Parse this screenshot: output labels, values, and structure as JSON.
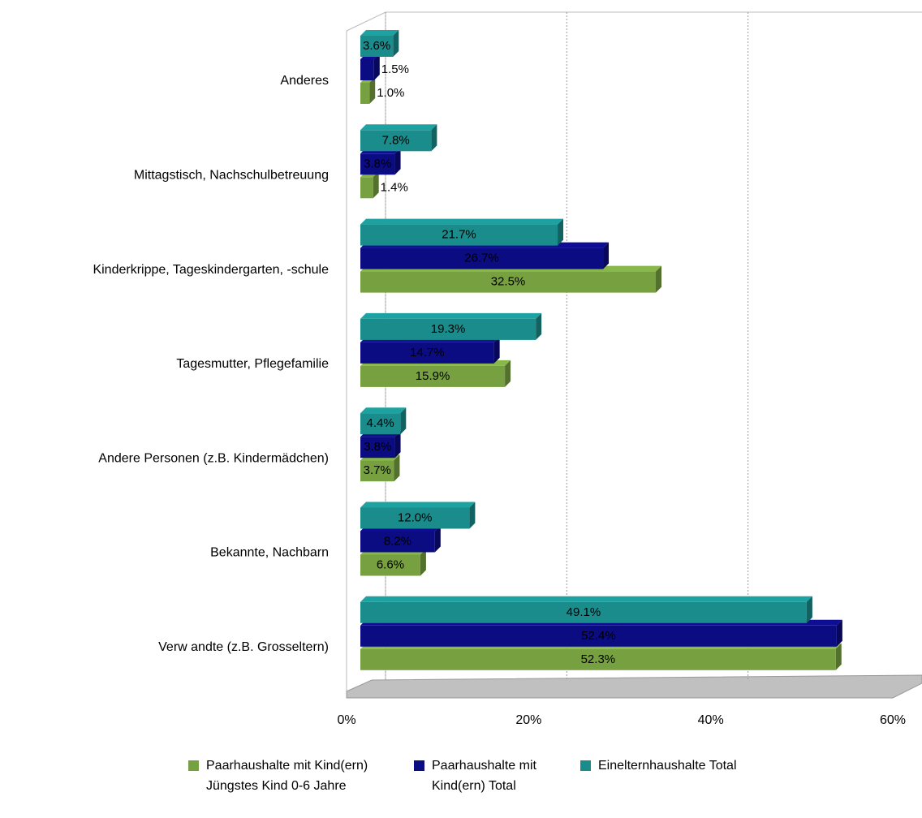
{
  "chart_data": {
    "type": "bar3d_horizontal",
    "categories": [
      "Anderes",
      "Mittagstisch, Nachschulbetreuung",
      "Kinderkrippe, Tageskindergarten, -schule",
      "Tagesmutter, Pflegefamilie",
      "Andere Personen (z.B. Kindermädchen)",
      "Bekannte, Nachbarn",
      "Verw andte (z.B. Grosseltern)"
    ],
    "series": [
      {
        "name": "Paarhaushalte mit Kind(ern) Jüngstes Kind 0-6 Jahre",
        "color": "#77a040",
        "values": [
          1.0,
          1.4,
          32.5,
          15.9,
          3.7,
          6.6,
          52.3
        ],
        "value_labels": [
          "1.0%",
          "1.4%",
          "32.5%",
          "15.9%",
          "3.7%",
          "6.6%",
          "52.3%"
        ]
      },
      {
        "name": "Paarhaushalte mit Kind(ern) Total",
        "color": "#0b0b82",
        "values": [
          1.5,
          3.8,
          26.7,
          14.7,
          3.8,
          8.2,
          52.4
        ],
        "value_labels": [
          "1.5%",
          "3.8%",
          "26.7%",
          "14.7%",
          "3.8%",
          "8.2%",
          "52.4%"
        ]
      },
      {
        "name": "Einelternhaushalte Total",
        "color": "#1a8c8c",
        "values": [
          3.6,
          7.8,
          21.7,
          19.3,
          4.4,
          12.0,
          49.1
        ],
        "value_labels": [
          "3.6%",
          "7.8%",
          "21.7%",
          "19.3%",
          "4.4%",
          "12.0%",
          "49.1%"
        ]
      }
    ],
    "xlim": [
      0,
      60
    ],
    "xticks": [
      {
        "value": 0,
        "label": "0%"
      },
      {
        "value": 20,
        "label": "20%"
      },
      {
        "value": 40,
        "label": "40%"
      },
      {
        "value": 60,
        "label": "60%"
      }
    ],
    "grid": true
  }
}
